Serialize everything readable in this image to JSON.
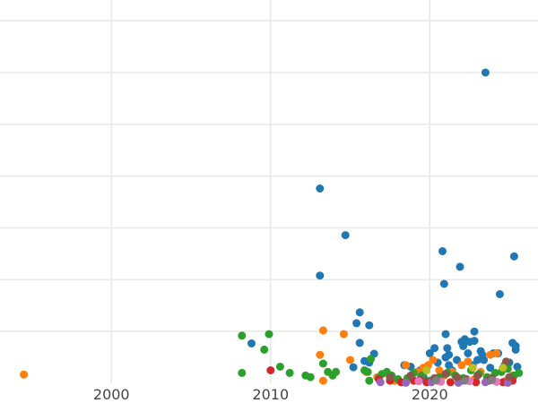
{
  "chart_data": {
    "type": "scatter",
    "title": "",
    "xlabel": "",
    "ylabel": "",
    "xlim": [
      1993.0,
      2026.8
    ],
    "ylim": [
      0,
      7.4
    ],
    "grid": true,
    "xticks": [
      {
        "value": 2000,
        "label": "2000"
      },
      {
        "value": 2010,
        "label": "2010"
      },
      {
        "value": 2020,
        "label": "2020"
      }
    ],
    "ygrid": [
      1,
      2,
      3,
      4,
      5,
      6,
      7
    ],
    "series": [
      {
        "color": "#1f77b4",
        "points": [
          [
            2008.8,
            0.77
          ],
          [
            2013.1,
            3.76
          ],
          [
            2013.1,
            2.08
          ],
          [
            2014.7,
            2.86
          ],
          [
            2015.4,
            1.16
          ],
          [
            2015.6,
            1.37
          ],
          [
            2015.6,
            0.78
          ],
          [
            2016.2,
            1.12
          ],
          [
            2016.5,
            0.57
          ],
          [
            2015.9,
            0.43
          ],
          [
            2015.2,
            0.31
          ],
          [
            2016.2,
            0.4
          ],
          [
            2018.4,
            0.35
          ],
          [
            2018.8,
            0.32
          ],
          [
            2019.4,
            0.25
          ],
          [
            2019.6,
            0.12
          ],
          [
            2020.0,
            0.58
          ],
          [
            2020.3,
            0.68
          ],
          [
            2020.5,
            0.4
          ],
          [
            2020.8,
            2.55
          ],
          [
            2020.9,
            1.92
          ],
          [
            2021.0,
            0.95
          ],
          [
            2021.1,
            0.68
          ],
          [
            2021.0,
            0.5
          ],
          [
            2021.2,
            0.35
          ],
          [
            2021.2,
            0.55
          ],
          [
            2021.4,
            0.25
          ],
          [
            2021.7,
            0.45
          ],
          [
            2021.9,
            2.25
          ],
          [
            2022.0,
            0.8
          ],
          [
            2022.1,
            0.72
          ],
          [
            2022.2,
            0.85
          ],
          [
            2022.4,
            0.58
          ],
          [
            2022.5,
            0.8
          ],
          [
            2022.7,
            0.35
          ],
          [
            2022.8,
            0.82
          ],
          [
            2022.8,
            1.0
          ],
          [
            2023.0,
            0.45
          ],
          [
            2023.2,
            0.62
          ],
          [
            2023.3,
            0.55
          ],
          [
            2023.4,
            0.45
          ],
          [
            2023.5,
            6.0
          ],
          [
            2023.8,
            0.3
          ],
          [
            2024.0,
            0.58
          ],
          [
            2024.3,
            0.58
          ],
          [
            2024.4,
            1.72
          ],
          [
            2024.7,
            0.35
          ],
          [
            2025.0,
            0.4
          ],
          [
            2025.2,
            0.78
          ],
          [
            2025.3,
            2.45
          ],
          [
            2025.4,
            0.72
          ],
          [
            2025.4,
            0.65
          ],
          [
            2025.5,
            0.32
          ]
        ]
      },
      {
        "color": "#ff7f0e",
        "points": [
          [
            1994.5,
            0.17
          ],
          [
            2013.1,
            0.55
          ],
          [
            2013.3,
            1.02
          ],
          [
            2013.3,
            0.05
          ],
          [
            2014.6,
            0.95
          ],
          [
            2015.0,
            0.45
          ],
          [
            2016.0,
            0.22
          ],
          [
            2016.7,
            0.12
          ],
          [
            2017.3,
            0.2
          ],
          [
            2017.8,
            0.05
          ],
          [
            2018.5,
            0.35
          ],
          [
            2019.2,
            0.22
          ],
          [
            2019.6,
            0.3
          ],
          [
            2019.9,
            0.35
          ],
          [
            2020.2,
            0.45
          ],
          [
            2020.6,
            0.25
          ],
          [
            2020.9,
            0.15
          ],
          [
            2021.4,
            0.22
          ],
          [
            2022.0,
            0.35
          ],
          [
            2022.4,
            0.42
          ],
          [
            2022.8,
            0.08
          ],
          [
            2023.2,
            0.22
          ],
          [
            2023.8,
            0.55
          ],
          [
            2024.2,
            0.58
          ],
          [
            2024.8,
            0.05
          ],
          [
            2025.2,
            0.15
          ]
        ]
      },
      {
        "color": "#2ca02c",
        "points": [
          [
            2008.2,
            0.92
          ],
          [
            2008.2,
            0.2
          ],
          [
            2009.6,
            0.65
          ],
          [
            2009.9,
            0.95
          ],
          [
            2010.6,
            0.32
          ],
          [
            2011.2,
            0.2
          ],
          [
            2012.2,
            0.15
          ],
          [
            2012.5,
            0.12
          ],
          [
            2013.3,
            0.38
          ],
          [
            2013.6,
            0.22
          ],
          [
            2013.9,
            0.15
          ],
          [
            2014.1,
            0.22
          ],
          [
            2015.9,
            0.25
          ],
          [
            2016.1,
            0.22
          ],
          [
            2016.2,
            0.05
          ],
          [
            2016.3,
            0.47
          ],
          [
            2016.8,
            0.1
          ],
          [
            2017.0,
            0.18
          ],
          [
            2017.3,
            0.22
          ],
          [
            2017.6,
            0.15
          ],
          [
            2018.0,
            0.08
          ],
          [
            2018.6,
            0.1
          ],
          [
            2019.0,
            0.2
          ],
          [
            2019.5,
            0.15
          ],
          [
            2020.0,
            0.05
          ],
          [
            2020.6,
            0.12
          ],
          [
            2021.1,
            0.2
          ],
          [
            2021.6,
            0.15
          ],
          [
            2022.1,
            0.1
          ],
          [
            2022.6,
            0.25
          ],
          [
            2023.1,
            0.18
          ],
          [
            2023.6,
            0.12
          ],
          [
            2024.1,
            0.2
          ],
          [
            2024.5,
            0.22
          ],
          [
            2024.9,
            0.28
          ],
          [
            2025.3,
            0.15
          ],
          [
            2025.6,
            0.2
          ]
        ]
      },
      {
        "color": "#d62728",
        "points": [
          [
            2010.0,
            0.25
          ],
          [
            2016.8,
            0.08
          ],
          [
            2017.5,
            0.05
          ],
          [
            2018.2,
            0.02
          ],
          [
            2019.0,
            0.05
          ],
          [
            2019.8,
            0.02
          ],
          [
            2020.5,
            0.05
          ],
          [
            2021.3,
            0.02
          ],
          [
            2022.0,
            0.05
          ],
          [
            2022.9,
            0.02
          ],
          [
            2023.7,
            0.05
          ],
          [
            2024.6,
            0.02
          ],
          [
            2025.2,
            0.05
          ]
        ]
      },
      {
        "color": "#9467bd",
        "points": [
          [
            2016.9,
            0.02
          ],
          [
            2018.5,
            0.01
          ],
          [
            2020.1,
            0.02
          ],
          [
            2021.8,
            0.01
          ],
          [
            2023.5,
            0.02
          ],
          [
            2024.9,
            0.01
          ]
        ]
      },
      {
        "color": "#8c564b",
        "points": [
          [
            2017.5,
            0.12
          ],
          [
            2018.8,
            0.15
          ],
          [
            2019.4,
            0.08
          ],
          [
            2020.3,
            0.1
          ],
          [
            2021.0,
            0.18
          ],
          [
            2021.7,
            0.12
          ],
          [
            2022.3,
            0.08
          ],
          [
            2023.0,
            0.15
          ],
          [
            2023.9,
            0.1
          ],
          [
            2024.8,
            0.42
          ],
          [
            2025.0,
            0.12
          ]
        ]
      },
      {
        "color": "#e377c2",
        "points": [
          [
            2019.3,
            0.04
          ],
          [
            2020.7,
            0.03
          ],
          [
            2022.5,
            0.04
          ],
          [
            2024.2,
            0.03
          ]
        ]
      },
      {
        "color": "#7f7f7f",
        "points": [
          [
            2020.4,
            0.06
          ],
          [
            2022.2,
            0.05
          ],
          [
            2023.9,
            0.06
          ]
        ]
      },
      {
        "color": "#bcbd22",
        "points": [
          [
            2019.8,
            0.25
          ],
          [
            2022.7,
            0.3
          ],
          [
            2024.6,
            0.3
          ]
        ]
      }
    ]
  }
}
